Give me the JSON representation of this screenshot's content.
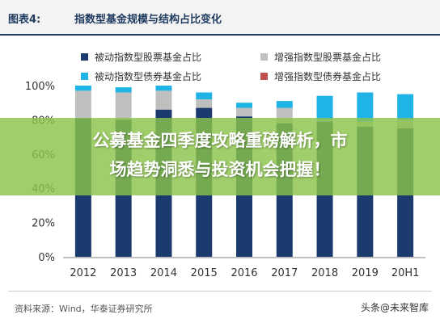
{
  "figure": {
    "label": "图表4:",
    "title": "指数型基金规模与结构占比变化"
  },
  "banner": {
    "line1": "公募基金四季度攻略重磅解析，市",
    "line2": "场趋势洞悉与投资机会把握！"
  },
  "source": "资料来源：Wind，华泰证券研究所",
  "watermark": "头条@未来智库",
  "colors": {
    "passive_equity": "#1b3b6f",
    "enhanced_equity": "#bfbfbf",
    "passive_bond": "#1fb3e6",
    "enhanced_bond": "#c0504d"
  },
  "chart_data": {
    "type": "bar",
    "stacked": true,
    "categories": [
      "2012",
      "2013",
      "2014",
      "2015",
      "2016",
      "2017",
      "2018",
      "2019",
      "20H1"
    ],
    "series": [
      {
        "name": "被动指数型股票基金占比",
        "values": [
          81,
          80,
          86,
          87,
          82,
          78,
          79,
          76,
          75
        ]
      },
      {
        "name": "增强指数型股票基金占比",
        "values": [
          16,
          16,
          11,
          5,
          5,
          9,
          1,
          3,
          5
        ]
      },
      {
        "name": "被动指数型债券基金占比",
        "values": [
          3,
          3,
          3,
          4,
          3,
          4,
          14,
          17,
          15
        ]
      },
      {
        "name": "增强指数型债券基金占比",
        "values": [
          0,
          0,
          0,
          0,
          0,
          0,
          0,
          0,
          0
        ]
      }
    ],
    "yticks": [
      "0%",
      "20%",
      "40%",
      "60%",
      "80%",
      "100%"
    ],
    "ylim": [
      0,
      100
    ],
    "legend_position": "top",
    "grid": false
  }
}
